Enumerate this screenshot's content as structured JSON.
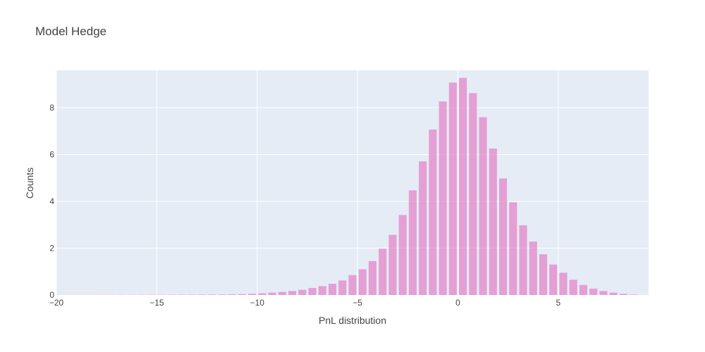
{
  "chart_data": {
    "type": "bar",
    "title": "Model Hedge",
    "xlabel": "PnL distribution",
    "ylabel": "Counts",
    "xlim": [
      -20,
      9.5
    ],
    "ylim": [
      0,
      9.6
    ],
    "bin_width": 0.5,
    "grid": true,
    "colors": {
      "bar": "#e377c2",
      "plot_bg": "#e5ecf6",
      "grid": "#ffffff",
      "text": "#444444"
    },
    "x_ticks": [
      {
        "value": -20,
        "label": "−20"
      },
      {
        "value": -15,
        "label": "−15"
      },
      {
        "value": -10,
        "label": "−10"
      },
      {
        "value": -5,
        "label": "−5"
      },
      {
        "value": 0,
        "label": "0"
      },
      {
        "value": 5,
        "label": "5"
      }
    ],
    "y_ticks": [
      {
        "value": 0,
        "label": "0"
      },
      {
        "value": 2,
        "label": "2"
      },
      {
        "value": 4,
        "label": "4"
      },
      {
        "value": 6,
        "label": "6"
      },
      {
        "value": 8,
        "label": "8"
      }
    ],
    "x": [
      -19.75,
      -19.25,
      -18.75,
      -18.25,
      -17.75,
      -17.25,
      -16.75,
      -16.25,
      -15.75,
      -15.25,
      -14.75,
      -14.25,
      -13.75,
      -13.25,
      -12.75,
      -12.25,
      -11.75,
      -11.25,
      -10.75,
      -10.25,
      -9.75,
      -9.25,
      -8.75,
      -8.25,
      -7.75,
      -7.25,
      -6.75,
      -6.25,
      -5.75,
      -5.25,
      -4.75,
      -4.25,
      -3.75,
      -3.25,
      -2.75,
      -2.25,
      -1.75,
      -1.25,
      -0.75,
      -0.25,
      0.25,
      0.75,
      1.25,
      1.75,
      2.25,
      2.75,
      3.25,
      3.75,
      4.25,
      4.75,
      5.25,
      5.75,
      6.25,
      6.75,
      7.25,
      7.75,
      8.25,
      8.75
    ],
    "values": [
      0.003,
      0.003,
      0.003,
      0.003,
      0.004,
      0.004,
      0.005,
      0.005,
      0.006,
      0.008,
      0.009,
      0.011,
      0.013,
      0.015,
      0.018,
      0.021,
      0.025,
      0.03,
      0.038,
      0.05,
      0.07,
      0.1,
      0.13,
      0.17,
      0.22,
      0.3,
      0.38,
      0.48,
      0.62,
      0.85,
      1.1,
      1.45,
      1.98,
      2.57,
      3.42,
      4.47,
      5.71,
      7.07,
      8.27,
      9.08,
      9.28,
      8.63,
      7.6,
      6.26,
      4.98,
      3.96,
      2.98,
      2.28,
      1.74,
      1.3,
      0.95,
      0.65,
      0.43,
      0.27,
      0.17,
      0.1,
      0.05,
      0.02
    ]
  }
}
